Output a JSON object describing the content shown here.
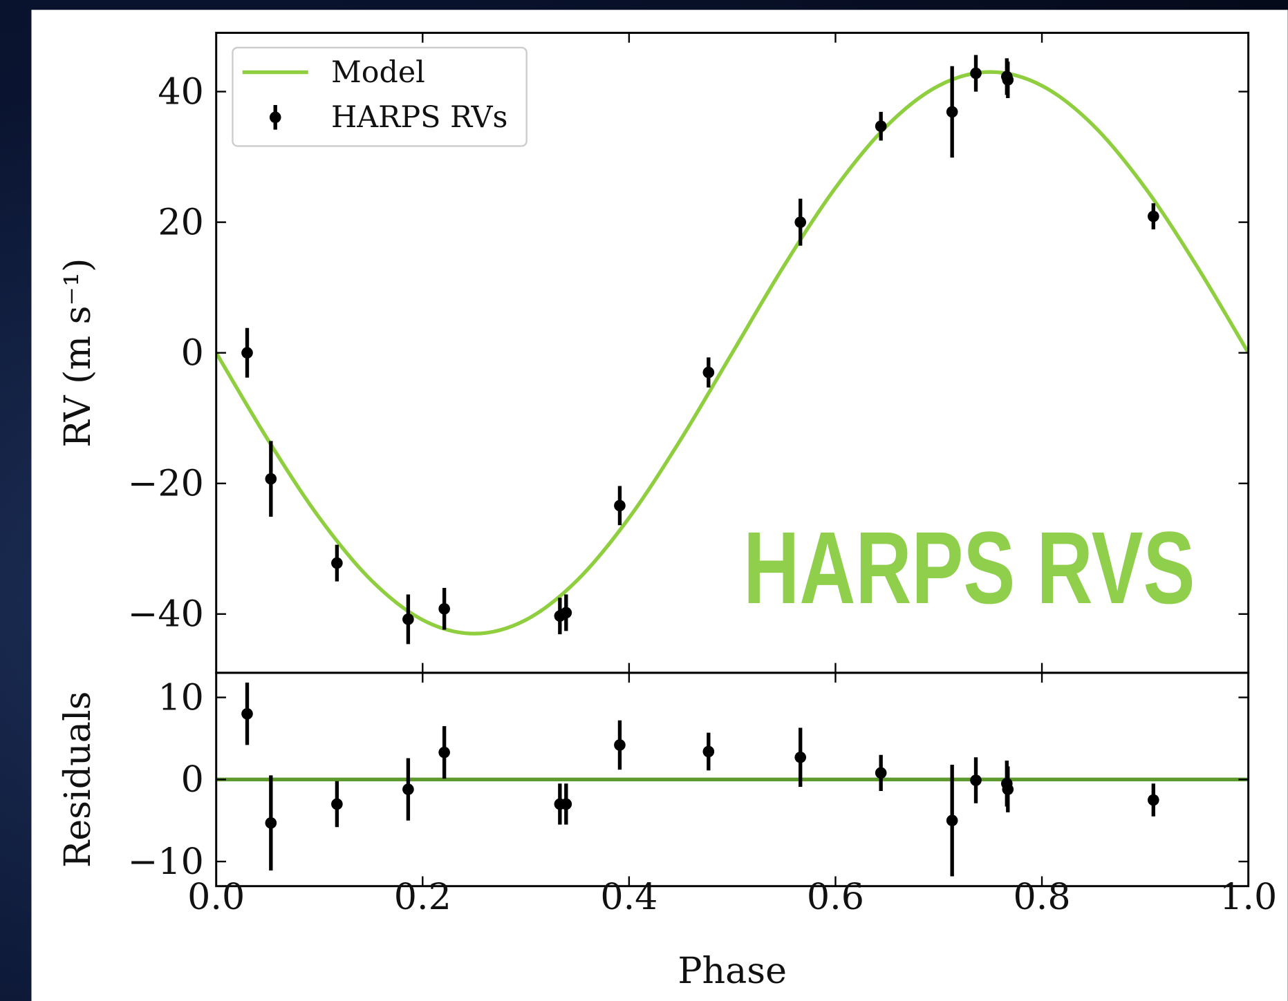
{
  "chart_data": [
    {
      "type": "scatter",
      "ylabel": "RV (m s⁻¹)",
      "annotation": "HARPS RVS",
      "annotation_color": "#8fcf4c",
      "ylim": [
        -49,
        49
      ],
      "yticks": [
        {
          "value": -40,
          "label": "−40"
        },
        {
          "value": -20,
          "label": "−20"
        },
        0,
        20,
        40
      ],
      "xlim": [
        0,
        1
      ],
      "xticks": [
        0,
        0.2,
        0.4,
        0.6,
        0.8,
        1
      ],
      "show_xtick_labels": false,
      "legend": "upper left",
      "series": [
        {
          "name": "Model",
          "style": "line",
          "color": "#8fcf3f",
          "x": [
            0,
            0.05,
            0.1,
            0.15,
            0.2,
            0.25,
            0.3,
            0.35,
            0.4,
            0.45,
            0.5,
            0.55,
            0.6,
            0.65,
            0.7,
            0.75,
            0.8,
            0.85,
            0.9,
            0.95,
            1
          ],
          "values": [
            0,
            -13.29,
            -25.27,
            -34.79,
            -40.9,
            -43,
            -40.9,
            -34.79,
            -25.27,
            -13.29,
            0,
            13.29,
            25.27,
            34.79,
            40.9,
            43,
            40.9,
            34.79,
            25.27,
            13.29,
            0
          ]
        },
        {
          "name": "HARPS RVs",
          "style": "errorbar",
          "color": "#000000",
          "x": [
            0.03,
            0.053,
            0.117,
            0.186,
            0.221,
            0.333,
            0.339,
            0.391,
            0.477,
            0.566,
            0.644,
            0.713,
            0.736,
            0.766,
            0.767,
            0.908
          ],
          "values": [
            0,
            -19.3,
            -32.2,
            -40.8,
            -39.2,
            -40.3,
            -39.8,
            -23.4,
            -3,
            20,
            34.7,
            36.9,
            42.8,
            42.3,
            41.8,
            20.9
          ],
          "errors": [
            3.8,
            5.8,
            2.8,
            3.8,
            3.2,
            2.8,
            2.8,
            3,
            2.3,
            3.6,
            2.2,
            7,
            2.8,
            2.8,
            2.8,
            2
          ]
        }
      ]
    },
    {
      "type": "scatter",
      "ylabel": "Residuals",
      "xlabel": "Phase",
      "ylim": [
        -13,
        13
      ],
      "yticks": [
        {
          "value": -10,
          "label": "−10"
        },
        0,
        10
      ],
      "xlim": [
        0,
        1
      ],
      "xticks": [
        {
          "value": 0,
          "label": "0.0"
        },
        0.2,
        0.4,
        0.6,
        0.8,
        {
          "value": 1,
          "label": "1.0"
        }
      ],
      "show_xtick_labels": true,
      "series": [
        {
          "style": "line",
          "color": "#5e9a2e",
          "x": [
            0,
            1
          ],
          "values": [
            0,
            0
          ]
        },
        {
          "style": "errorbar",
          "color": "#000000",
          "x": [
            0.03,
            0.053,
            0.117,
            0.186,
            0.221,
            0.333,
            0.339,
            0.391,
            0.477,
            0.566,
            0.644,
            0.713,
            0.736,
            0.766,
            0.767,
            0.908
          ],
          "values": [
            8,
            -5.3,
            -3,
            -1.2,
            3.3,
            -3,
            -3,
            4.2,
            3.4,
            2.7,
            0.8,
            -5,
            -0.1,
            -0.5,
            -1.2,
            -2.5
          ],
          "errors": [
            3.8,
            5.8,
            2.8,
            3.8,
            3.2,
            2.5,
            2.5,
            3,
            2.3,
            3.6,
            2.2,
            6.8,
            2.8,
            2.8,
            2.8,
            2
          ]
        }
      ]
    }
  ]
}
